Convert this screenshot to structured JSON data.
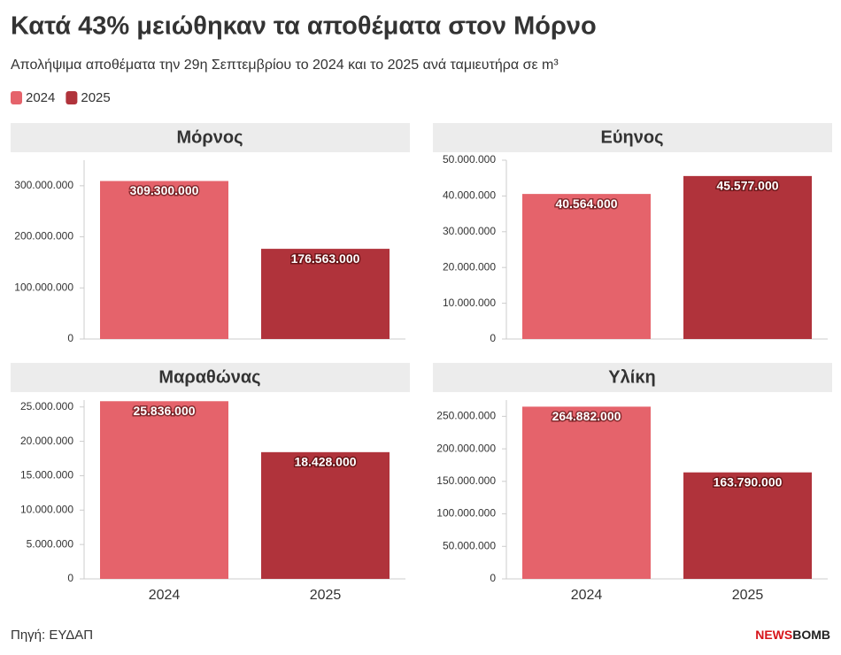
{
  "title": "Κατά 43% μειώθηκαν τα αποθέματα στον Μόρνο",
  "subtitle": "Απολήψιμα αποθέματα την 29η Σεπτεμβρίου το 2024 και το 2025 ανά ταμιευτήρα σε m³",
  "legend": [
    {
      "name": "2024",
      "color": "#e5636b"
    },
    {
      "name": "2025",
      "color": "#b0333b"
    }
  ],
  "source": "Πηγή: ΕΥΔΑΠ",
  "logo": [
    "NEWS",
    "BOMB"
  ],
  "chart_data": [
    {
      "type": "bar",
      "title": "Μόρνος",
      "categories": [
        null,
        null
      ],
      "values": [
        309300000,
        176563000
      ],
      "value_labels": [
        "309.300.000",
        "176.563.000"
      ],
      "ylim": [
        0,
        350000000
      ],
      "yticks": [
        0,
        {
          "value": 100000000,
          "label": "100.000.000"
        },
        {
          "value": 200000000,
          "label": "200.000.000"
        },
        {
          "value": 300000000,
          "label": "300.000.000"
        }
      ]
    },
    {
      "type": "bar",
      "title": "Εύηνος",
      "categories": [
        null,
        null
      ],
      "values": [
        40564000,
        45577000
      ],
      "value_labels": [
        "40.564.000",
        "45.577.000"
      ],
      "ylim": [
        0,
        50000000
      ],
      "yticks": [
        0,
        {
          "value": 10000000,
          "label": "10.000.000"
        },
        {
          "value": 20000000,
          "label": "20.000.000"
        },
        {
          "value": 30000000,
          "label": "30.000.000"
        },
        {
          "value": 40000000,
          "label": "40.000.000"
        },
        {
          "value": 50000000,
          "label": "50.000.000"
        }
      ]
    },
    {
      "type": "bar",
      "title": "Μαραθώνας",
      "categories": [
        "2024",
        "2025"
      ],
      "values": [
        25836000,
        18428000
      ],
      "value_labels": [
        "25.836.000",
        "18.428.000"
      ],
      "ylim": [
        0,
        26000000
      ],
      "yticks": [
        0,
        {
          "value": 5000000,
          "label": "5.000.000"
        },
        {
          "value": 10000000,
          "label": "10.000.000"
        },
        {
          "value": 15000000,
          "label": "15.000.000"
        },
        {
          "value": 20000000,
          "label": "20.000.000"
        },
        {
          "value": 25000000,
          "label": "25.000.000"
        }
      ]
    },
    {
      "type": "bar",
      "title": "Υλίκη",
      "categories": [
        "2024",
        "2025"
      ],
      "values": [
        264882000,
        163790000
      ],
      "value_labels": [
        "264.882.000",
        "163.790.000"
      ],
      "ylim": [
        0,
        275000000
      ],
      "yticks": [
        0,
        {
          "value": 50000000,
          "label": "50.000.000"
        },
        {
          "value": 100000000,
          "label": "100.000.000"
        },
        {
          "value": 150000000,
          "label": "150.000.000"
        },
        {
          "value": 200000000,
          "label": "200.000.000"
        },
        {
          "value": 250000000,
          "label": "250.000.000"
        }
      ]
    }
  ]
}
